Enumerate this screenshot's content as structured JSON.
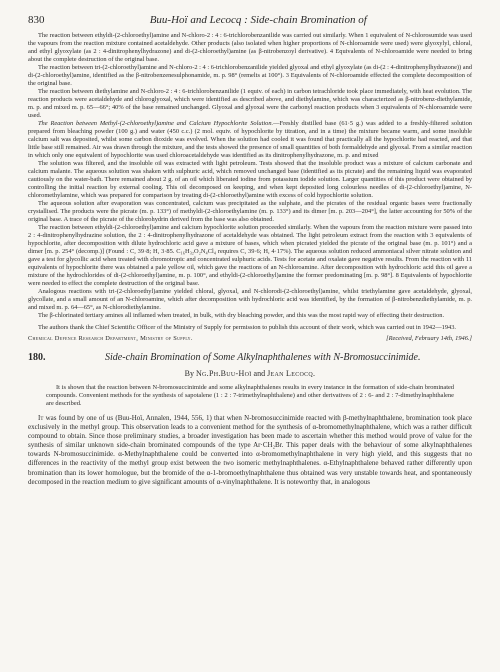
{
  "header": {
    "page_number": "830",
    "running_title": "Buu-Hoï and Lecocq :  Side-chain Bromination of"
  },
  "body": {
    "p1": "The reaction between ethyldi-(2-chloroethyl)amine and N-chloro-2 : 4 : 6-trichlorobenzanilide was carried out similarly. When 1 equivalent of N-chlorosumide was used the vapours from the reaction mixture contained acetaldehyde. Other products (also isolated when higher proportions of N-chloroamide were used) were glyoxylyl, chloral, and ethyl glyoxylate (as 2 : 4-dinitrophenylhydrazone) and di-(2-chloroethyl)amine (as β-nitrobenzoyl derivative). 4 Equivalents of N-chloroamide were needed to bring about the complete destruction of the original base.",
    "p2": "The reaction between tri-(2-chloroethyl)amine and N-chloro-2 : 4 : 6-trichlorobenzanilide yielded glyoxal and ethyl glyoxylate (as di-(2 : 4-dinitrophenylhydrazone)) and di-(2-chloroethyl)amine, identified as the β-nitrobenzenesulphonamide, m. p. 98° (remelts at 100°). 3 Equivalents of N-chloroamide effected the complete decomposition of the original base.",
    "p3": "The reaction between diethylamine and N-chloro-2 : 4 : 6-trichlorobenzanilide (1 equiv. of each) in carbon tetrachloride took place immediately, with heat evolution. The reaction products were acetaldehyde and chloroglyoxal, which were identified as described above, and diethylamine, which was characterized as β-nitrobenz-diethylamide, m. p. and mixed m. p. 65—66°; 40% of the base remained unchanged. Glyoxal and glyoxal were the carbonyl reaction products when 3 equivalents of N-chloroamide were used.",
    "p4_title": "The Reaction between Methyl-(2-chloroethyl)amine and Calcium Hypochlorite Solution.",
    "p4": "—Freshly distilled base (61·5 g.) was added to a freshly-filtered solution prepared from bleaching powder (100 g.) and water (450 c.c.) (2 mol. equiv. of hypochlorite by titration, and in a time) the mixture became warm, and some insoluble calcium salt was deposited, whilst some carbon dioxide was evolved. When the solution had cooled it was found that practically all the hypochlorite had reacted, and that little base still remained. Air was drawn through the mixture, and the tests showed the presence of small quantities of both formaldehyde and glyoxal. From a similar reaction in which only one equivalent of hypochlorite was used chloroacetaldehyde was identified as its dinitrophenylhydrazone, m. p. and mixed",
    "p5": "The solution was filtered, and the insoluble oil was extracted with light petroleum. Tests showed that the insoluble product was a mixture of calcium carbonate and calcium malante. The aqueous solution was shaken with sulphuric acid, which removed unchanged base (identified as its picrate) and the remaining liquid was evaporated cautiously on the water-bath. There remained about 2 g. of an oil which liberated iodine from potassium iodide solution. Larger quantities of this product were obtained by controlling the initial reaction by external cooling. This oil decomposed on keeping, and when kept deposited long colourless needles of di-(2-chloroethyl)amine, N-chloromethylamine, which was prepared for comparison by treating di-(2-chloroethyl)amine with excess of cold hypochlorite solution.",
    "p6": "The aqueous solution after evaporation was concentrated, calcium was precipitated as the sulphate, and the picrates of the residual organic bases were fractionally crystallised. The products were the picrate (m. p. 133°) of methyldi-(2-chloroethylamine (m. p. 133°) and its dimer [m. p. 203—204°], the latter accounting for 50% of the original base. A trace of the picrate of the chlorohydrin derived from the base was also obtained.",
    "p7": "The reaction between ethyldi-(2-chloroethyl)amine and calcium hypochlorite solution proceeded similarly. When the vapours from the reaction mixture were passed into 2 : 4-dinitrophenylhydrazine solution, the 2 : 4-dinitrophenylhydrazone of acetaldehyde was obtained. The light petroleum extract from the reaction with 3 equivalents of hypochlorite, after decomposition with dilute hydrochloric acid gave a mixture of bases, which when picrated yielded the picrate of the original base (m. p. 101°) and a dimer [m. p. 254° (decomp.)] (Found : C, 39·8; H, 3·85. C₁₆H₃₂O₂N₄Cl₄ requires C, 39·6; H, 4·17%). The aqueous solution reduced ammoniacal silver nitrate solution and gave a test for glycollic acid when treated with chromotropic and concentrated sulphuric acids. Tests for acetate and oxalate gave negative results. From the reaction with 11 equivalents of hypochlorite there was obtained a pale yellow oil, which gave the reactions of an N-chloroamine. After decomposition with hydrochloric acid this oil gave a mixture of the hydrochlorides of di-(2-chloroethyl)amine, m. p. 100°, and ethyldi-(2-chloroethyl)amine the former predominating [m. p. 98°]. 8 Equivalents of hypochlorite were needed to effect the complete destruction of the original base.",
    "p8": "Analogous reactions with tri-(2-chloroethyl)amine yielded chloral, glyoxal, and N-chlorodi-(2-chloroethyl)amine, whilst triethylamine gave acetaldehyde, glyoxal, glycollate, and a small amount of an N-chloroamine, which after decomposition with hydrochloric acid was identified, by the formation of β-nitrobenzdiethylamide, m. p. and mixed m. p. 64—65°, as N-chlorodiethylamine.",
    "p9": "The β-chlorinated tertiary amines all inflamed when treated, in bulk, with dry bleaching powder, and this was the most rapid way of effecting their destruction."
  },
  "ack": "The authors thank the Chief Scientific Officer of the Ministry of Supply for permission to publish this account of their work, which was carried out in 1942—1943.",
  "affiliation": "Chemical Defence Research Department, Ministry of Supply.",
  "received": "[Received, February 14th, 1946.]",
  "article": {
    "number": "180.",
    "title": "Side-chain Bromination of Some Alkylnaphthalenes with N-Bromosuccinimide.",
    "authors_prefix": "By ",
    "author1": "Ng.Ph.Buu-Hoï",
    "authors_and": " and ",
    "author2": "Jean Lecocq.",
    "abstract": "It is shown that the reaction between N-bromosuccinimide and some alkylnaphthalenes results in every instance in the formation of side-chain brominated compounds. Convenient methods for the synthesis of sapotalene (1 : 2 : 7-trimethylnaphthalene) and other derivatives of 2 : 6- and 2 : 7-dimethylnaphthalene are described.",
    "intro1_lead": "It",
    "intro1": " was found by one of us (Buu-Hoï, Annalen, 1944, 556, 1) that when N-bromosuccinimide reacted with β-methylnaphthalene, bromination took place exclusively in the methyl group. This observation leads to a convenient method for the synthesis of α-bromomethylnaphthalene, which was a rather difficult compound to obtain. Since those preliminary studies, a broader investigation has been made to ascertain whether this method would prove of value for the synthesis of similar unknown side-chain brominated compounds of the type Ar·CH₂Br. This paper deals with the behaviour of some alkylnaphthalenes towards N-bromosuccinimide. α-Methylnaphthalene could be converted into α-bromomethylnaphthalene in very high yield, and this suggests that no differences in the reactivity of the methyl group exist between the two isomeric methylnaphthalenes. α-Ethylnaphthalene behaved rather differently upon bromination than its lower homologue, but the bromide of the α-1-bromoethylnaphthalene thus obtained was very unstable towards heat, and spontaneously decomposed in the reaction medium to give significant amounts of α-vinylnaphthalene. It is noteworthy that, in analogous"
  }
}
